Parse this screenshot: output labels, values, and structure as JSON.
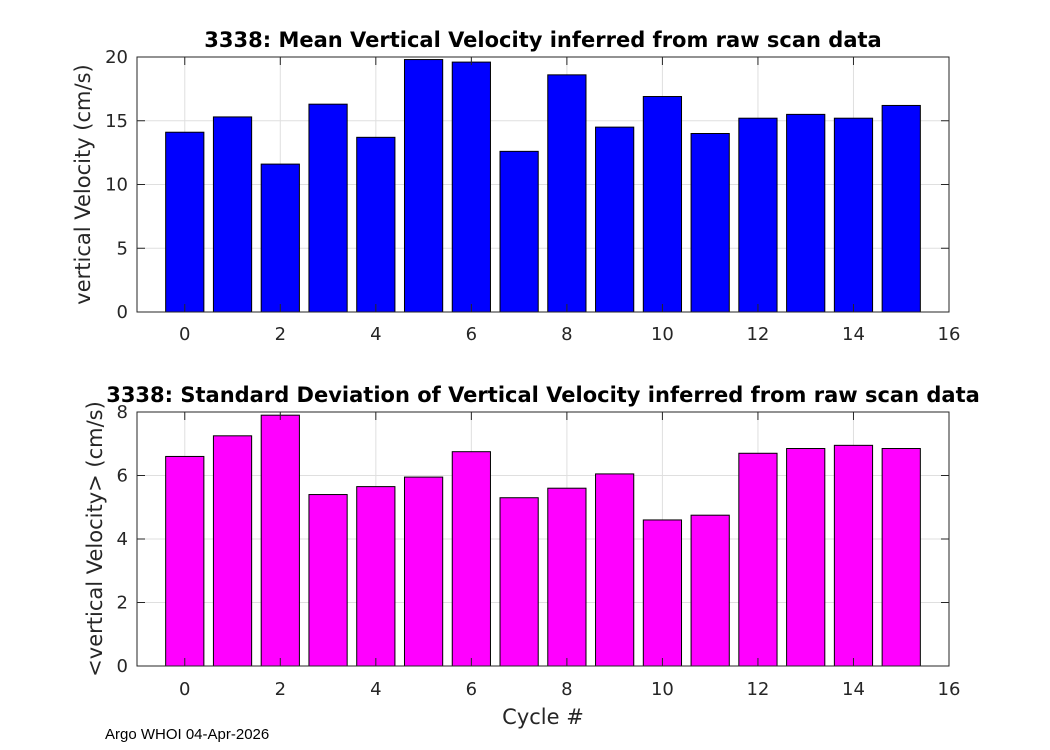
{
  "chart_data": [
    {
      "type": "bar",
      "title": "3338: Mean Vertical Velocity inferred from raw scan data",
      "xlabel": "",
      "ylabel": "vertical Velocity (cm/s)",
      "x": [
        0,
        1,
        2,
        3,
        4,
        5,
        6,
        7,
        8,
        9,
        10,
        11,
        12,
        13,
        14,
        15
      ],
      "values": [
        14.1,
        15.3,
        11.6,
        16.3,
        13.7,
        19.8,
        19.6,
        12.6,
        18.6,
        14.5,
        16.9,
        14.0,
        15.2,
        15.5,
        15.2,
        16.2
      ],
      "xlim": [
        -1,
        16
      ],
      "ylim": [
        0,
        20
      ],
      "xticks": [
        0,
        2,
        4,
        6,
        8,
        10,
        12,
        14,
        16
      ],
      "yticks": [
        0,
        5,
        10,
        15,
        20
      ],
      "bar_color": "#0000ff",
      "grid": true
    },
    {
      "type": "bar",
      "title": "3338: Standard Deviation of Vertical Velocity inferred from raw scan data",
      "xlabel": "Cycle #",
      "ylabel": "<vertical Velocity> (cm/s)",
      "x": [
        0,
        1,
        2,
        3,
        4,
        5,
        6,
        7,
        8,
        9,
        10,
        11,
        12,
        13,
        14,
        15
      ],
      "values": [
        6.6,
        7.25,
        7.9,
        5.4,
        5.65,
        5.95,
        6.75,
        5.3,
        5.6,
        6.05,
        4.6,
        4.75,
        6.7,
        6.85,
        6.95,
        6.85
      ],
      "xlim": [
        -1,
        16
      ],
      "ylim": [
        0,
        8
      ],
      "xticks": [
        0,
        2,
        4,
        6,
        8,
        10,
        12,
        14,
        16
      ],
      "yticks": [
        0,
        2,
        4,
        6,
        8
      ],
      "bar_color": "#ff00ff",
      "grid": true
    }
  ],
  "footer": "Argo WHOI 04-Apr-2026"
}
